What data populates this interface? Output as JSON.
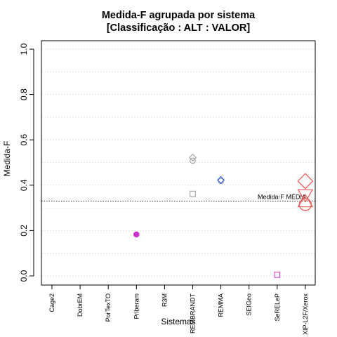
{
  "chart_data": {
    "type": "scatter",
    "title": "Medida-F agrupada por sistema",
    "subtitle": "[Classificação : ALT : VALOR]",
    "xlabel": "Sistemas",
    "ylabel": "Medida-F",
    "ylim": [
      0,
      1
    ],
    "yticks": [
      "0.0",
      "0.2",
      "0.4",
      "0.6",
      "0.8",
      "1.0"
    ],
    "grid": true,
    "categories": [
      "Cage2",
      "DobrEM",
      "PorTexTO",
      "Priberam",
      "R3M",
      "REMBRANDT",
      "REMMA",
      "SEIGeo",
      "SeRELeP",
      "XIP-L2F/Xerox"
    ],
    "points": [
      {
        "category": "Priberam",
        "y": 0.183,
        "shape": "circle",
        "filled": true,
        "color": "#cc33cc",
        "size": "small"
      },
      {
        "category": "REMBRANDT",
        "y": 0.522,
        "shape": "diamond",
        "filled": false,
        "color": "#999999",
        "size": "small"
      },
      {
        "category": "REMBRANDT",
        "y": 0.508,
        "shape": "circle",
        "filled": false,
        "color": "#999999",
        "size": "small"
      },
      {
        "category": "REMBRANDT",
        "y": 0.362,
        "shape": "square",
        "filled": false,
        "color": "#999999",
        "size": "small"
      },
      {
        "category": "REMMA",
        "y": 0.423,
        "shape": "diamond",
        "filled": false,
        "color": "#1144dd",
        "size": "small"
      },
      {
        "category": "REMMA",
        "y": 0.418,
        "shape": "circle",
        "filled": false,
        "color": "#8888aa",
        "size": "small"
      },
      {
        "category": "SeRELeP",
        "y": 0.005,
        "shape": "square",
        "filled": false,
        "color": "#cc33cc",
        "size": "small"
      },
      {
        "category": "XIP-L2F/Xerox",
        "y": 0.418,
        "shape": "diamond",
        "filled": false,
        "color": "#ee5555",
        "size": "large"
      },
      {
        "category": "XIP-L2F/Xerox",
        "y": 0.355,
        "shape": "triangle-down",
        "filled": false,
        "color": "#ee5555",
        "size": "large"
      },
      {
        "category": "XIP-L2F/Xerox",
        "y": 0.33,
        "shape": "triangle-up",
        "filled": false,
        "color": "#ee5555",
        "size": "large"
      },
      {
        "category": "XIP-L2F/Xerox",
        "y": 0.315,
        "shape": "circle",
        "filled": false,
        "color": "#ee5555",
        "size": "large"
      }
    ],
    "reference_line": {
      "y": 0.33,
      "label": "Medida-F MÉDIA",
      "style": "dotted"
    }
  }
}
